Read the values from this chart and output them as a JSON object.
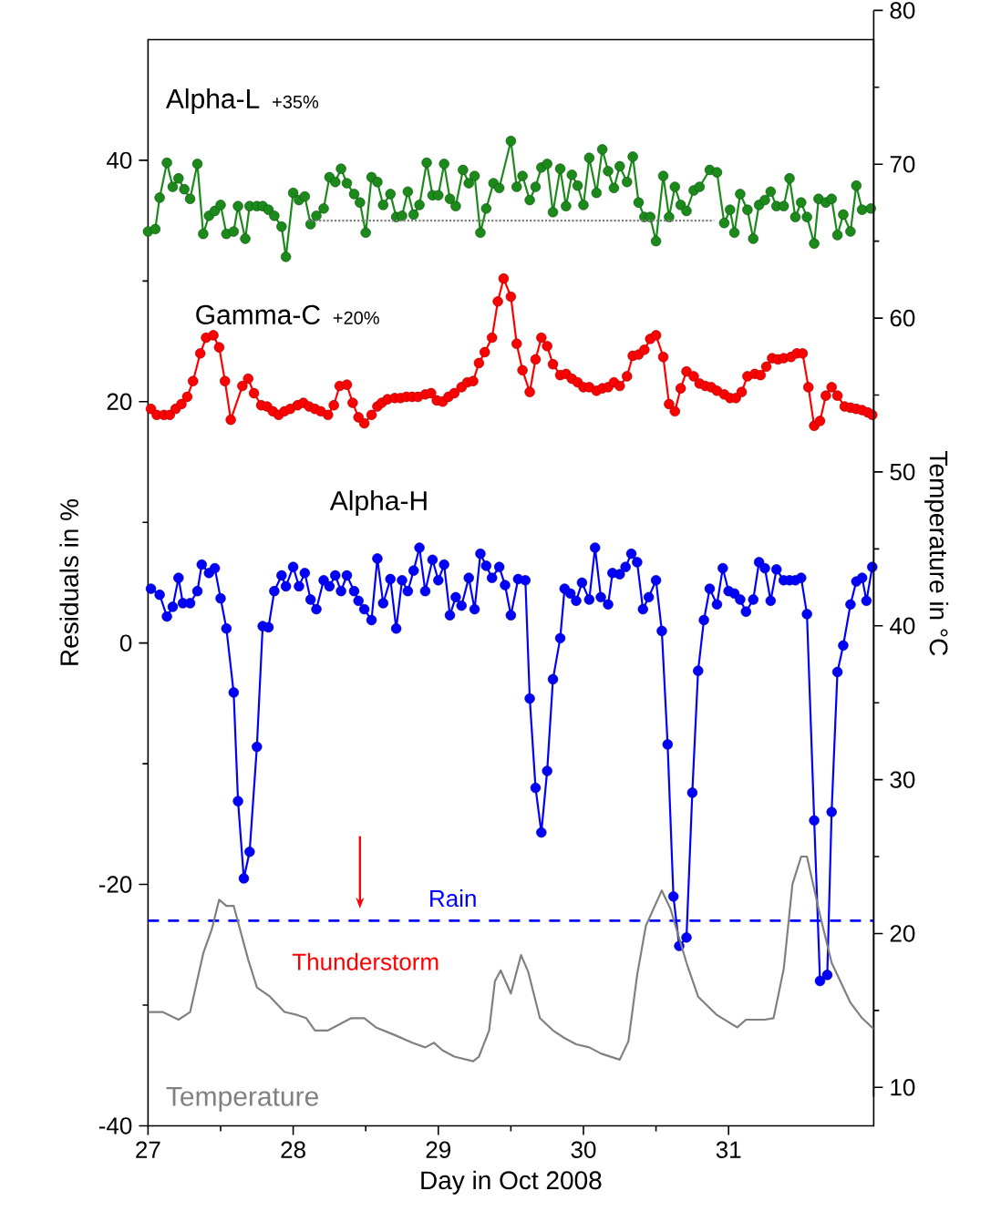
{
  "chart_data": {
    "type": "line",
    "xlabel": "Day in Oct 2008",
    "ylabel": "Residuals in %",
    "y2label": "Temperature in °C",
    "xlim": [
      27,
      32
    ],
    "xticks": [
      27,
      28,
      29,
      30,
      31
    ],
    "ylim": [
      -40,
      50
    ],
    "yticks": [
      -40,
      -20,
      0,
      20,
      40
    ],
    "y2lim": [
      9.4,
      80
    ],
    "y2ticks": [
      10,
      20,
      30,
      40,
      50,
      60,
      70,
      80
    ],
    "marker": "circle",
    "line_style": "solid",
    "series": [
      {
        "name": "Alpha-L",
        "color": "#1b8a1b",
        "x": [
          27.0,
          27.05,
          27.08,
          27.13,
          27.17,
          27.21,
          27.25,
          27.29,
          27.34,
          27.38,
          27.42,
          27.46,
          27.5,
          27.54,
          27.59,
          27.62,
          27.67,
          27.7,
          27.75,
          27.79,
          27.83,
          27.87,
          27.92,
          27.95,
          28.0,
          28.04,
          28.08,
          28.12,
          28.16,
          28.21,
          28.25,
          28.29,
          28.33,
          28.37,
          28.42,
          28.46,
          28.5,
          28.54,
          28.58,
          28.62,
          28.67,
          28.71,
          28.75,
          28.79,
          28.83,
          28.87,
          28.92,
          28.96,
          29.0,
          29.04,
          29.08,
          29.12,
          29.17,
          29.21,
          29.25,
          29.29,
          29.33,
          29.38,
          29.42,
          29.5,
          29.54,
          29.58,
          29.63,
          29.67,
          29.71,
          29.75,
          29.79,
          29.84,
          29.88,
          29.92,
          29.96,
          30.0,
          30.04,
          30.09,
          30.13,
          30.17,
          30.21,
          30.25,
          30.3,
          30.34,
          30.38,
          30.42,
          30.46,
          30.5,
          30.55,
          30.59,
          30.63,
          30.67,
          30.71,
          30.76,
          30.8,
          30.87,
          30.92,
          30.97,
          31.01,
          31.04,
          31.08,
          31.13,
          31.17,
          31.21,
          31.25,
          31.29,
          31.33,
          31.38,
          31.42,
          31.46,
          31.5,
          31.54,
          31.59,
          31.62,
          31.67,
          31.71,
          31.75,
          31.79,
          31.84,
          31.88,
          31.92,
          31.98
        ],
        "values": [
          34.1,
          34.3,
          36.9,
          39.8,
          37.8,
          38.5,
          37.6,
          36.8,
          39.7,
          33.9,
          35.4,
          35.8,
          36.3,
          33.9,
          34.1,
          36.2,
          33.5,
          36.2,
          36.2,
          36.2,
          35.9,
          35.4,
          34.5,
          32.0,
          37.3,
          36.7,
          37.0,
          34.7,
          35.4,
          36.0,
          38.6,
          38.2,
          39.3,
          38.1,
          37.2,
          36.5,
          34.0,
          38.6,
          38.2,
          36.3,
          37.2,
          35.3,
          35.4,
          37.4,
          35.5,
          36.3,
          39.8,
          37.1,
          37.1,
          39.7,
          36.8,
          36.2,
          39.2,
          38.1,
          38.7,
          34.0,
          36.0,
          38.1,
          37.7,
          41.6,
          37.8,
          38.7,
          36.7,
          37.8,
          39.4,
          39.7,
          35.7,
          39.3,
          36.2,
          38.8,
          37.9,
          36.3,
          40.2,
          37.3,
          40.9,
          39.1,
          37.7,
          39.5,
          38.2,
          40.3,
          36.5,
          35.3,
          35.3,
          33.3,
          38.7,
          35.3,
          37.8,
          36.3,
          35.8,
          37.5,
          37.8,
          39.2,
          39.0,
          34.8,
          35.9,
          34.0,
          37.2,
          35.9,
          33.5,
          36.3,
          36.7,
          37.4,
          36.2,
          36.2,
          38.5,
          35.3,
          36.5,
          35.3,
          33.1,
          36.8,
          36.5,
          36.8,
          33.8,
          35.5,
          34.1,
          37.9,
          35.9,
          36.0
        ]
      },
      {
        "name": "Gamma-C",
        "color": "#ff0000",
        "x": [
          27.02,
          27.06,
          27.11,
          27.15,
          27.19,
          27.23,
          27.27,
          27.31,
          27.36,
          27.4,
          27.45,
          27.49,
          27.53,
          27.57,
          27.65,
          27.69,
          27.73,
          27.78,
          27.82,
          27.86,
          27.9,
          27.94,
          27.98,
          28.03,
          28.07,
          28.11,
          28.15,
          28.19,
          28.24,
          28.28,
          28.32,
          28.37,
          28.41,
          28.45,
          28.49,
          28.54,
          28.58,
          28.61,
          28.65,
          28.7,
          28.74,
          28.78,
          28.82,
          28.86,
          28.91,
          28.95,
          28.99,
          29.03,
          29.07,
          29.11,
          29.16,
          29.2,
          29.24,
          29.28,
          29.32,
          29.37,
          29.41,
          29.45,
          29.5,
          29.54,
          29.58,
          29.63,
          29.67,
          29.71,
          29.75,
          29.79,
          29.84,
          29.88,
          29.92,
          29.96,
          30.0,
          30.04,
          30.09,
          30.13,
          30.17,
          30.21,
          30.25,
          30.3,
          30.34,
          30.38,
          30.42,
          30.46,
          30.5,
          30.55,
          30.59,
          30.63,
          30.67,
          30.71,
          30.76,
          30.8,
          30.84,
          30.88,
          30.92,
          30.97,
          31.01,
          31.05,
          31.09,
          31.13,
          31.18,
          31.22,
          31.26,
          31.3,
          31.34,
          31.38,
          31.43,
          31.47,
          31.51,
          31.55,
          31.59,
          31.63,
          31.67,
          31.71,
          31.75,
          31.8,
          31.84,
          31.88,
          31.92,
          31.96,
          31.99
        ],
        "values": [
          19.4,
          18.9,
          18.9,
          18.9,
          19.4,
          19.8,
          20.4,
          21.7,
          24.0,
          25.3,
          25.5,
          24.5,
          21.7,
          18.5,
          21.3,
          21.9,
          20.7,
          19.7,
          19.6,
          19.2,
          18.9,
          19.2,
          19.4,
          19.7,
          19.9,
          19.6,
          19.4,
          19.2,
          18.9,
          19.7,
          21.3,
          21.4,
          19.9,
          18.7,
          18.2,
          18.9,
          19.6,
          19.9,
          20.2,
          20.3,
          20.3,
          20.4,
          20.4,
          20.4,
          20.6,
          20.7,
          20.1,
          20.0,
          20.4,
          20.7,
          21.2,
          21.6,
          21.7,
          23.2,
          24.1,
          25.3,
          28.3,
          30.2,
          28.7,
          24.8,
          22.6,
          20.8,
          23.5,
          25.3,
          24.6,
          23.1,
          22.2,
          22.3,
          21.9,
          21.6,
          21.2,
          21.2,
          20.9,
          21.1,
          21.2,
          21.6,
          21.3,
          22.1,
          23.8,
          23.9,
          24.3,
          25.2,
          25.5,
          23.7,
          19.8,
          19.2,
          21.1,
          22.5,
          22.1,
          21.5,
          21.3,
          21.2,
          20.9,
          20.6,
          20.3,
          20.3,
          20.8,
          22.1,
          22.3,
          22.2,
          22.9,
          23.6,
          23.5,
          23.6,
          23.7,
          24.0,
          24.0,
          21.2,
          18.0,
          18.4,
          20.5,
          21.2,
          20.5,
          19.6,
          19.5,
          19.4,
          19.3,
          19.1,
          18.9
        ]
      },
      {
        "name": "Alpha-H",
        "color": "#0000ff",
        "x": [
          27.02,
          27.08,
          27.13,
          27.17,
          27.21,
          27.24,
          27.29,
          27.34,
          27.37,
          27.42,
          27.46,
          27.5,
          27.54,
          27.59,
          27.62,
          27.66,
          27.7,
          27.75,
          27.79,
          27.83,
          27.87,
          27.92,
          27.95,
          28.0,
          28.04,
          28.08,
          28.12,
          28.16,
          28.21,
          28.25,
          28.29,
          28.33,
          28.37,
          28.42,
          28.45,
          28.49,
          28.54,
          28.58,
          28.62,
          28.67,
          28.71,
          28.75,
          28.79,
          28.83,
          28.87,
          28.91,
          28.96,
          29.0,
          29.04,
          29.08,
          29.12,
          29.16,
          29.21,
          29.25,
          29.29,
          29.33,
          29.37,
          29.42,
          29.46,
          29.5,
          29.55,
          29.6,
          29.63,
          29.67,
          29.71,
          29.75,
          29.79,
          29.84,
          29.87,
          29.91,
          29.95,
          29.99,
          30.04,
          30.08,
          30.12,
          30.17,
          30.2,
          30.25,
          30.29,
          30.33,
          30.37,
          30.41,
          30.45,
          30.5,
          30.54,
          30.58,
          30.62,
          30.66,
          30.71,
          30.75,
          30.79,
          30.83,
          30.87,
          30.92,
          30.96,
          31.0,
          31.04,
          31.08,
          31.12,
          31.17,
          31.21,
          31.25,
          31.29,
          31.33,
          31.38,
          31.42,
          31.46,
          31.5,
          31.54,
          31.59,
          31.63,
          31.68,
          31.71,
          31.75,
          31.79,
          31.84,
          31.88,
          31.92,
          31.95,
          31.99
        ],
        "values": [
          4.5,
          4.0,
          2.2,
          3.0,
          5.4,
          3.3,
          3.3,
          4.3,
          6.5,
          5.8,
          6.2,
          3.7,
          1.2,
          -4.1,
          -13.1,
          -19.5,
          -17.3,
          -8.6,
          1.4,
          1.3,
          4.3,
          5.6,
          4.7,
          6.3,
          4.7,
          5.8,
          3.6,
          2.8,
          5.2,
          4.7,
          5.6,
          4.3,
          5.6,
          4.3,
          3.5,
          2.8,
          1.9,
          7.0,
          3.3,
          5.3,
          1.2,
          5.2,
          4.3,
          6.0,
          7.9,
          4.3,
          6.9,
          5.2,
          6.5,
          2.3,
          3.8,
          3.1,
          5.4,
          2.8,
          7.4,
          6.4,
          5.4,
          6.3,
          4.8,
          2.3,
          5.3,
          5.2,
          -4.6,
          -12.0,
          -15.7,
          -10.6,
          -3.0,
          0.4,
          4.5,
          4.1,
          3.5,
          5.0,
          3.6,
          7.9,
          3.8,
          3.2,
          5.8,
          5.7,
          6.3,
          7.4,
          6.7,
          2.8,
          3.8,
          5.2,
          1.0,
          -8.4,
          -21.0,
          -25.1,
          -24.4,
          -12.4,
          -2.3,
          1.9,
          4.5,
          3.2,
          6.2,
          4.3,
          4.1,
          3.6,
          2.6,
          3.6,
          6.7,
          6.2,
          3.5,
          6.1,
          5.2,
          5.2,
          5.2,
          5.4,
          2.4,
          -14.7,
          -28.0,
          -27.5,
          -14.0,
          -2.4,
          -0.2,
          3.2,
          5.1,
          5.4,
          3.5,
          6.3
        ]
      },
      {
        "name": "Temperature",
        "color": "#808080",
        "axis": "y2",
        "marker": "none",
        "x": [
          27.0,
          27.1,
          27.21,
          27.29,
          27.38,
          27.44,
          27.49,
          27.54,
          27.59,
          27.69,
          27.75,
          27.84,
          27.94,
          28.03,
          28.09,
          28.15,
          28.24,
          28.32,
          28.4,
          28.49,
          28.57,
          28.7,
          28.82,
          28.91,
          28.97,
          29.03,
          29.11,
          29.24,
          29.28,
          29.35,
          29.39,
          29.43,
          29.5,
          29.57,
          29.62,
          29.7,
          29.79,
          29.87,
          29.95,
          30.04,
          30.12,
          30.25,
          30.31,
          30.37,
          30.43,
          30.54,
          30.6,
          30.71,
          30.79,
          30.92,
          31.06,
          31.12,
          31.25,
          31.31,
          31.38,
          31.44,
          31.5,
          31.54,
          31.63,
          31.71,
          31.84,
          31.92,
          32.0
        ],
        "values": [
          14.9,
          14.9,
          14.4,
          14.9,
          18.7,
          20.3,
          22.2,
          21.8,
          21.8,
          18.3,
          16.5,
          15.9,
          14.9,
          14.7,
          14.5,
          13.7,
          13.7,
          14.1,
          14.5,
          14.5,
          13.9,
          13.4,
          12.9,
          12.6,
          12.9,
          12.4,
          12.0,
          11.7,
          12.0,
          13.7,
          16.9,
          17.6,
          16.1,
          18.6,
          17.5,
          14.5,
          13.7,
          13.2,
          12.8,
          12.6,
          12.2,
          11.8,
          13.0,
          17.3,
          20.5,
          22.8,
          21.6,
          18.1,
          15.9,
          14.7,
          13.9,
          14.4,
          14.4,
          14.5,
          17.7,
          23.2,
          25.0,
          25.0,
          21.2,
          18.1,
          15.5,
          14.5,
          13.8
        ]
      },
      {
        "type": "line",
        "color": "#808080",
        "line_style": "dotted",
        "marker": "none",
        "x": [
          28.1,
          30.9
        ],
        "values": [
          35,
          35
        ]
      }
    ],
    "ref_lines": [
      {
        "axis": "y",
        "value": -23,
        "label": "Rain",
        "color": "#0000ff",
        "line_style": "dashed"
      }
    ],
    "annotations": [
      "+35%",
      "+20%",
      "Thunderstorm"
    ]
  }
}
